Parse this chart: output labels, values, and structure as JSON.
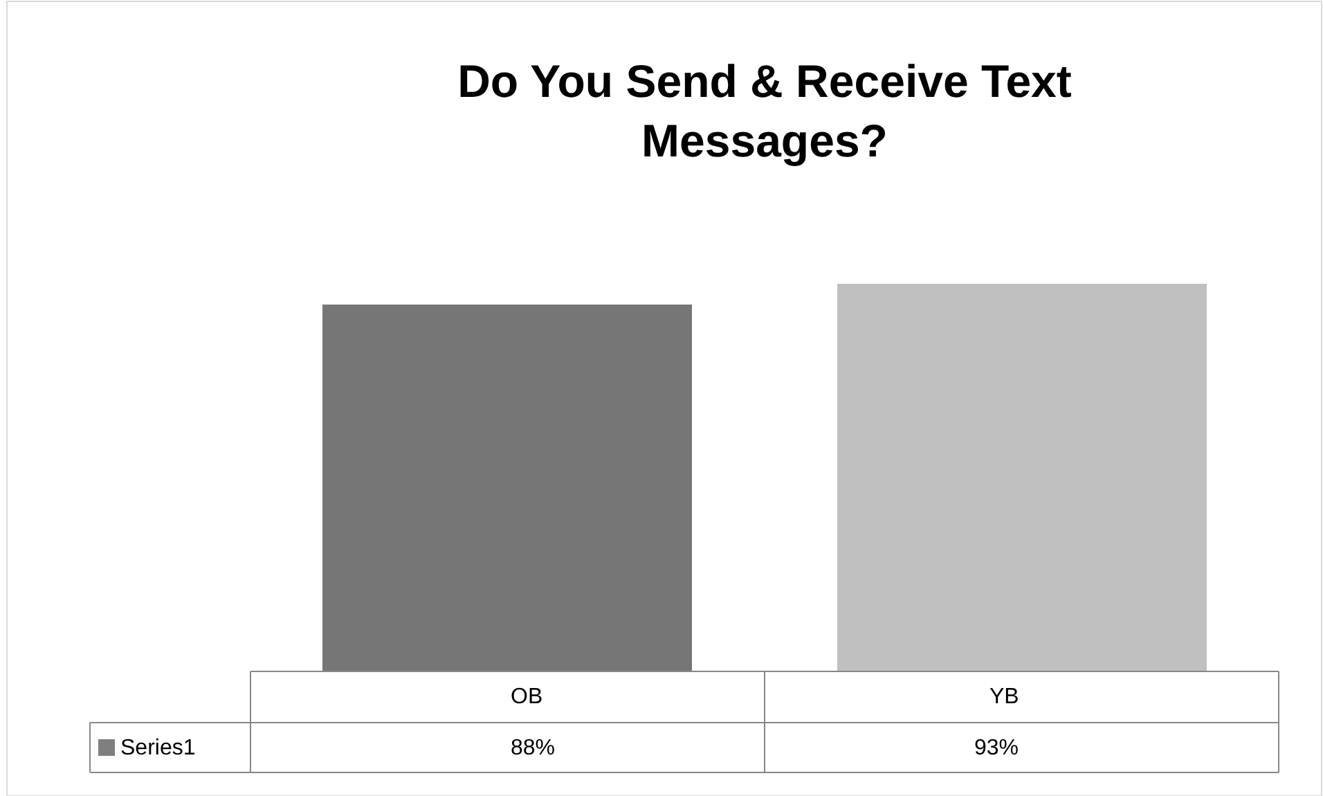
{
  "chart_data": {
    "type": "bar",
    "title": "Do You Send & Receive Text Messages?",
    "categories": [
      "OB",
      "YB"
    ],
    "series": [
      {
        "name": "Series1",
        "color": "#7f7f7f",
        "colors": [
          "#767676",
          "#c0c0c0"
        ],
        "values": [
          88,
          93
        ],
        "value_labels": [
          "88%",
          "93%"
        ]
      }
    ],
    "tick_labels": false,
    "legend": "bottom left"
  }
}
